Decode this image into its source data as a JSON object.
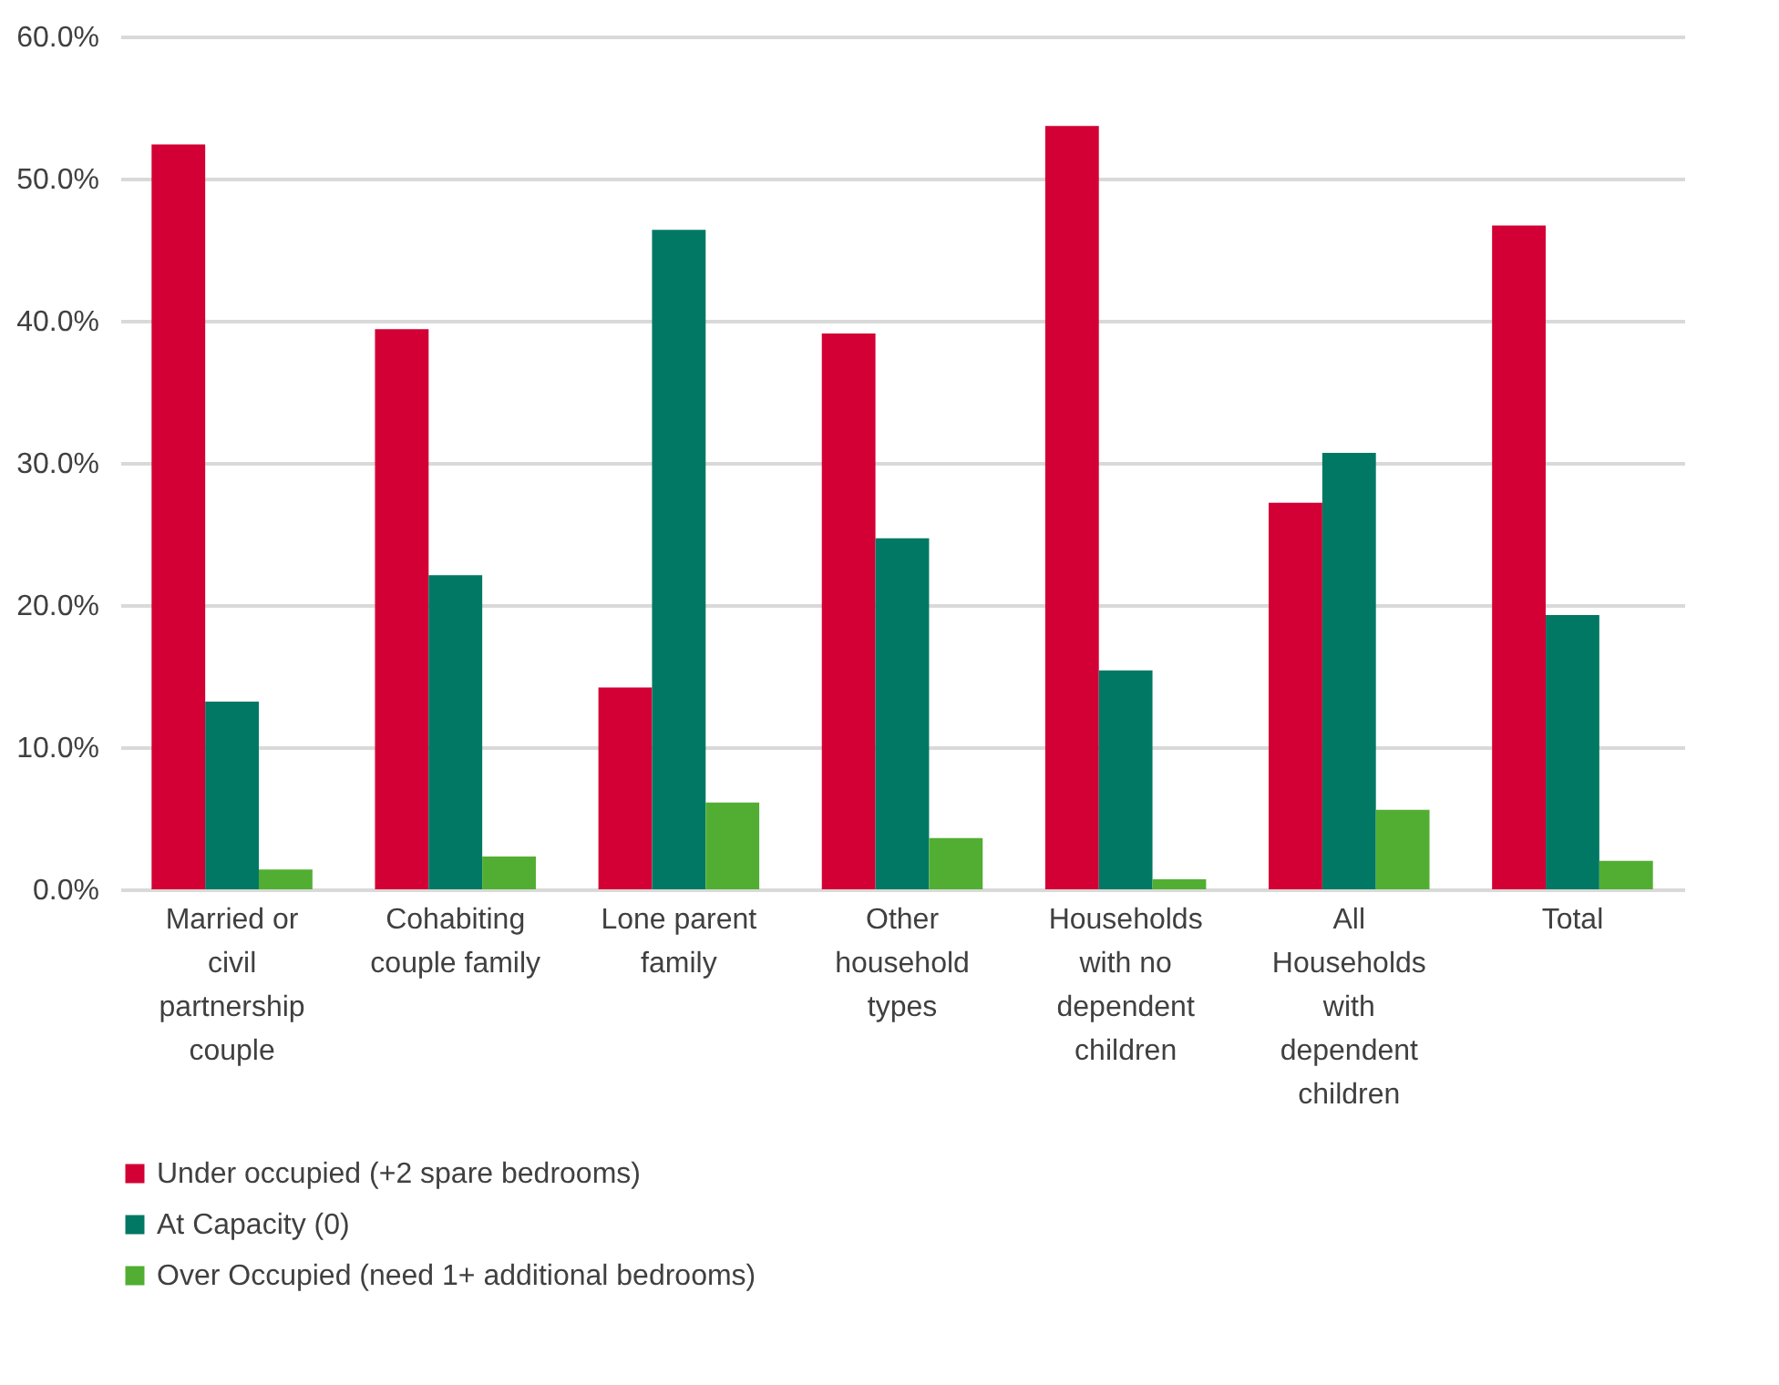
{
  "chart_data": {
    "type": "bar",
    "categories": [
      "Married or civil partnership couple",
      "Cohabiting couple family",
      "Lone parent family",
      "Other household types",
      "Households with no dependent children",
      "All Households with dependent children",
      "Total"
    ],
    "series": [
      {
        "name": "Under occupied (+2 spare bedrooms)",
        "color": "#d20034",
        "values": [
          52.4,
          39.4,
          14.2,
          39.1,
          53.7,
          27.2,
          46.7
        ]
      },
      {
        "name": "At Capacity (0)",
        "color": "#007864",
        "values": [
          13.2,
          22.1,
          46.4,
          24.7,
          15.4,
          30.7,
          19.3
        ]
      },
      {
        "name": "Over Occupied (need 1+ additional bedrooms)",
        "color": "#52ae32",
        "values": [
          1.4,
          2.3,
          6.1,
          3.6,
          0.7,
          5.6,
          2.0
        ]
      }
    ],
    "ylim": [
      0,
      60
    ],
    "yticks": [
      {
        "value": 0,
        "label": "0.0%"
      },
      {
        "value": 10,
        "label": "10.0%"
      },
      {
        "value": 20,
        "label": "20.0%"
      },
      {
        "value": 30,
        "label": "30.0%"
      },
      {
        "value": 40,
        "label": "40.0%"
      },
      {
        "value": 50,
        "label": "50.0%"
      },
      {
        "value": 60,
        "label": "60.0%"
      }
    ],
    "grid": "y",
    "legend": "bottom"
  }
}
